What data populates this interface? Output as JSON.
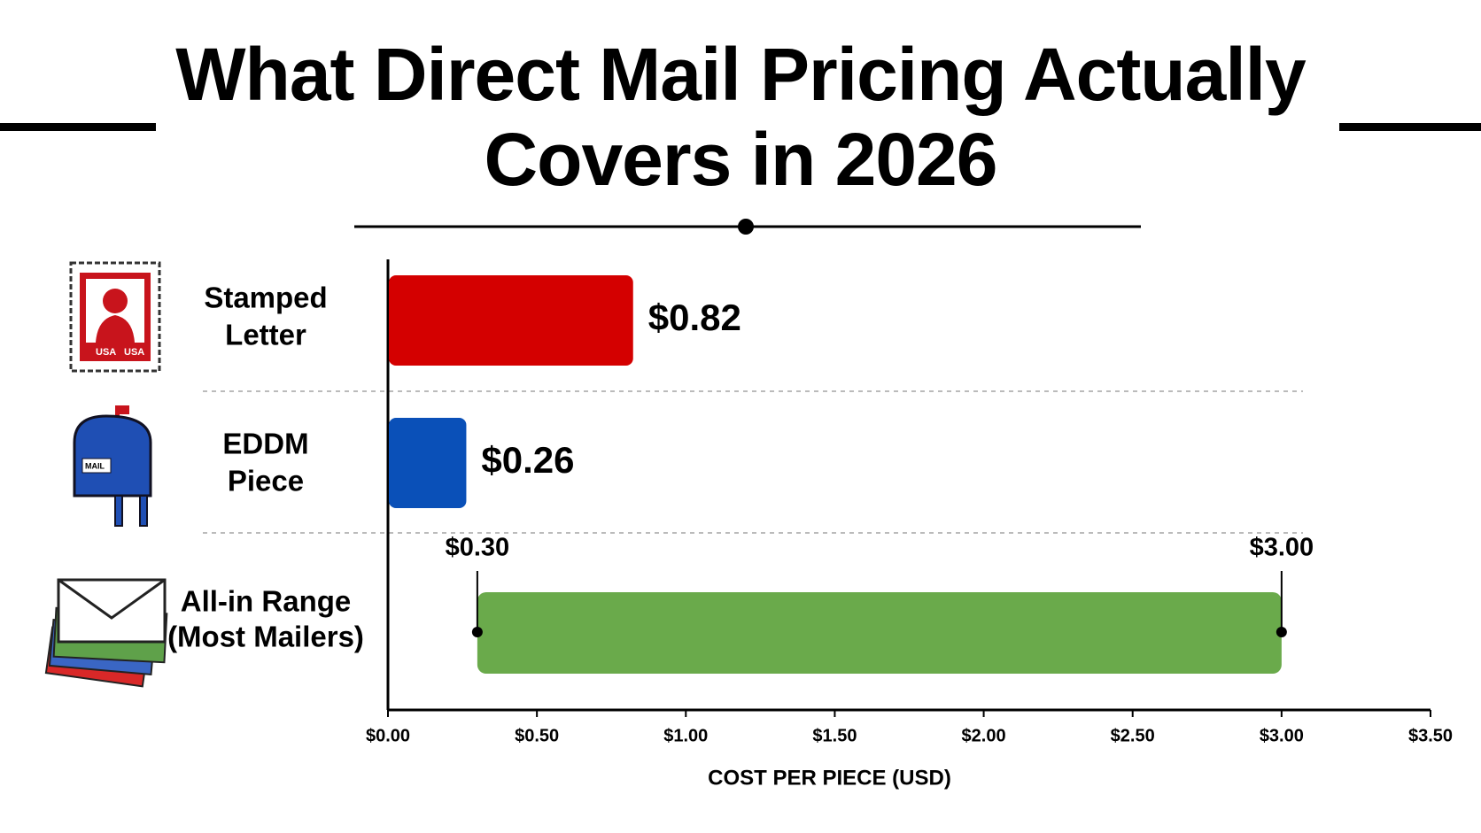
{
  "chart_data": {
    "type": "bar",
    "orientation": "horizontal",
    "title": "What Direct Mail Pricing Actually Covers in 2026",
    "categories": [
      [
        "Stamped",
        "Letter"
      ],
      [
        "EDDM",
        "Piece"
      ],
      [
        "All-in Range",
        "(Most Mailers)"
      ]
    ],
    "bars": [
      {
        "value": 0.82,
        "value_label": "$0.82",
        "color": "#d40000"
      },
      {
        "value": 0.26,
        "value_label": "$0.26",
        "color": "#0a50b8"
      },
      {
        "low": 0.3,
        "high": 3.0,
        "low_label": "$0.30",
        "high_label": "$3.00",
        "color": "#6aaa4b"
      }
    ],
    "xlim": [
      0,
      3.5
    ],
    "xticks": [
      {
        "value": 0,
        "label": "$0.00"
      },
      {
        "value": 0.5,
        "label": "$0.50"
      },
      {
        "value": 1,
        "label": "$1.00"
      },
      {
        "value": 1.5,
        "label": "$1.50"
      },
      {
        "value": 2,
        "label": "$2.00"
      },
      {
        "value": 2.5,
        "label": "$2.50"
      },
      {
        "value": 3,
        "label": "$3.00"
      },
      {
        "value": 3.5,
        "label": "$3.50"
      }
    ],
    "xlabel": "COST PER PIECE (USD)"
  }
}
